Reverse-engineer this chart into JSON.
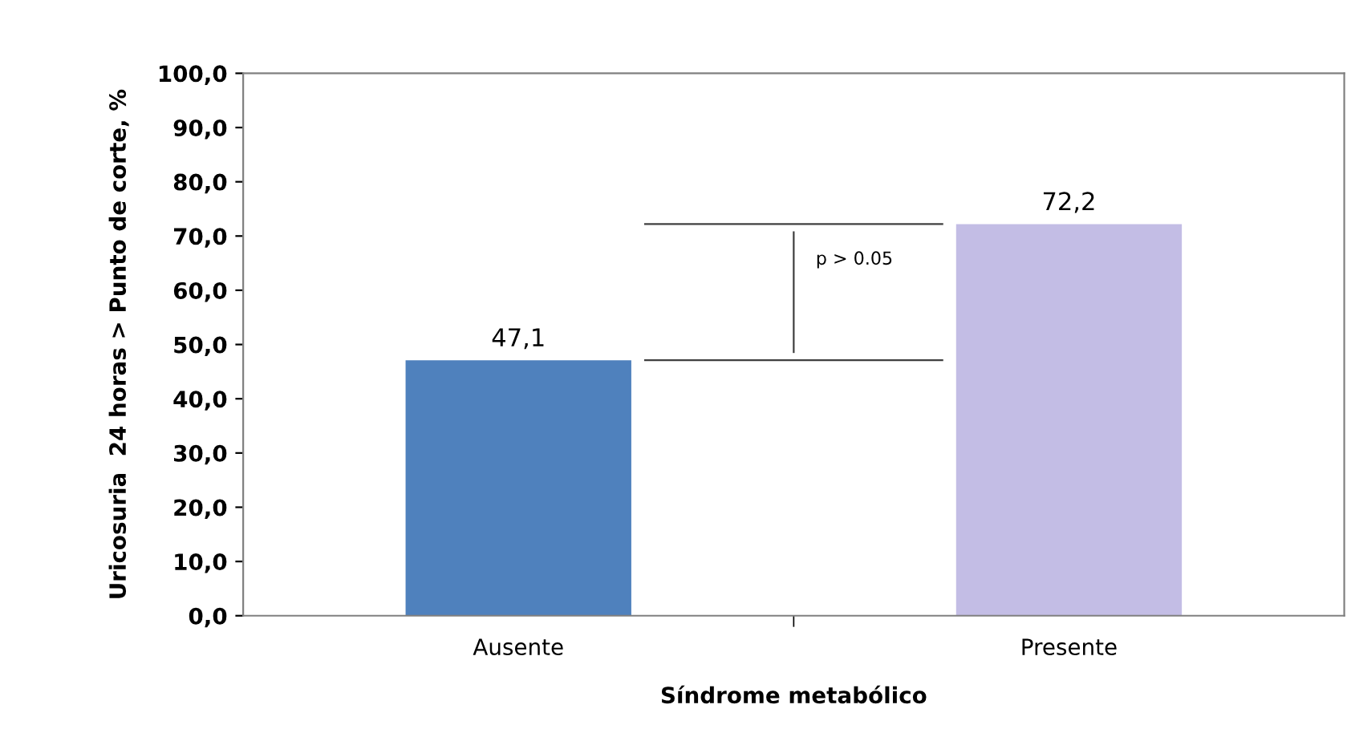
{
  "chart_data": {
    "type": "bar",
    "xlabel": "Síndrome metabólico",
    "ylabel": "Uricosuria  24 horas > Punto de corte, %",
    "categories": [
      "Ausente",
      "Presente"
    ],
    "values": [
      47.1,
      72.2
    ],
    "colors": [
      "#4f81bd",
      "#c3bde5"
    ],
    "value_labels": [
      "47,1",
      "72,2"
    ],
    "ylim": [
      0,
      100
    ],
    "yticks": [
      {
        "value": 0,
        "label": "0,0"
      },
      {
        "value": 10,
        "label": "10,0"
      },
      {
        "value": 20,
        "label": "20,0"
      },
      {
        "value": 30,
        "label": "30,0"
      },
      {
        "value": 40,
        "label": "40,0"
      },
      {
        "value": 50,
        "label": "50,0"
      },
      {
        "value": 60,
        "label": "60,0"
      },
      {
        "value": 70,
        "label": "70,0"
      },
      {
        "value": 80,
        "label": "80,0"
      },
      {
        "value": 90,
        "label": "90,0"
      },
      {
        "value": 100,
        "label": "100,0"
      }
    ],
    "annotations": [
      "p > 0.05"
    ],
    "grid": false
  }
}
